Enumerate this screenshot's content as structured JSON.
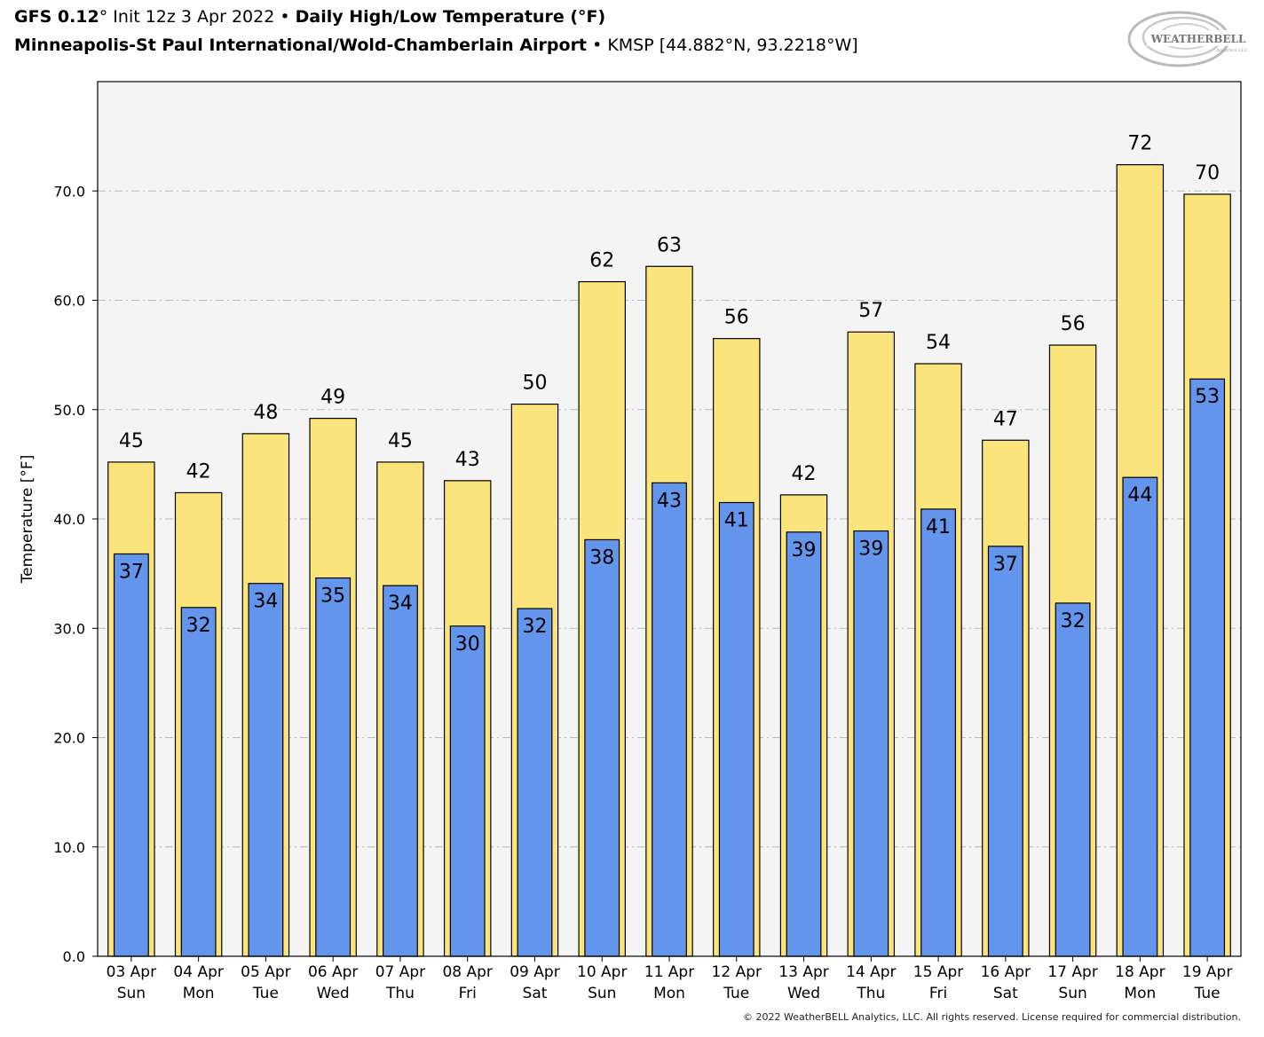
{
  "header": {
    "model": "GFS 0.12",
    "init_text": "° Init 12z 3 Apr 2022",
    "bullet": " • ",
    "product": "Daily High/Low Temperature (°F)",
    "location": "Minneapolis-St Paul International/Wold-Chamberlain Airport",
    "station": "KMSP [44.882°N, 93.2218°W]"
  },
  "logo": {
    "text_main": "WEATHERBELL",
    "text_sub": "Analytics LLC"
  },
  "footer": {
    "copyright": "© 2022 WeatherBELL Analytics, LLC. All rights reserved. License required for commercial distribution."
  },
  "colors": {
    "high": "#fce47c",
    "low": "#6495ed",
    "plot_bg": "#f4f4f4",
    "grid": "#bbbbbb"
  },
  "chart_data": {
    "type": "bar",
    "ylabel": "Temperature [°F]",
    "ylim": [
      0,
      80
    ],
    "yticks": [
      "0.0",
      "10.0",
      "20.0",
      "30.0",
      "40.0",
      "50.0",
      "60.0",
      "70.0"
    ],
    "grid": true,
    "categories": [
      [
        "03 Apr",
        "Sun"
      ],
      [
        "04 Apr",
        "Mon"
      ],
      [
        "05 Apr",
        "Tue"
      ],
      [
        "06 Apr",
        "Wed"
      ],
      [
        "07 Apr",
        "Thu"
      ],
      [
        "08 Apr",
        "Fri"
      ],
      [
        "09 Apr",
        "Sat"
      ],
      [
        "10 Apr",
        "Sun"
      ],
      [
        "11 Apr",
        "Mon"
      ],
      [
        "12 Apr",
        "Tue"
      ],
      [
        "13 Apr",
        "Wed"
      ],
      [
        "14 Apr",
        "Thu"
      ],
      [
        "15 Apr",
        "Fri"
      ],
      [
        "16 Apr",
        "Sat"
      ],
      [
        "17 Apr",
        "Sun"
      ],
      [
        "18 Apr",
        "Mon"
      ],
      [
        "19 Apr",
        "Tue"
      ]
    ],
    "series": [
      {
        "values": [
          45.2,
          42.4,
          47.8,
          49.2,
          45.2,
          43.5,
          50.5,
          61.7,
          63.1,
          56.5,
          42.2,
          57.1,
          54.2,
          47.2,
          55.9,
          72.4,
          69.7
        ],
        "labels": [
          "45",
          "42",
          "48",
          "49",
          "45",
          "43",
          "50",
          "62",
          "63",
          "56",
          "42",
          "57",
          "54",
          "47",
          "56",
          "72",
          "70"
        ]
      },
      {
        "values": [
          36.8,
          31.9,
          34.1,
          34.6,
          33.9,
          30.2,
          31.8,
          38.1,
          43.3,
          41.5,
          38.8,
          38.9,
          40.9,
          37.5,
          32.3,
          43.8,
          52.8
        ],
        "labels": [
          "37",
          "32",
          "34",
          "35",
          "34",
          "30",
          "32",
          "38",
          "43",
          "41",
          "39",
          "39",
          "41",
          "37",
          "32",
          "44",
          "53"
        ]
      }
    ]
  }
}
